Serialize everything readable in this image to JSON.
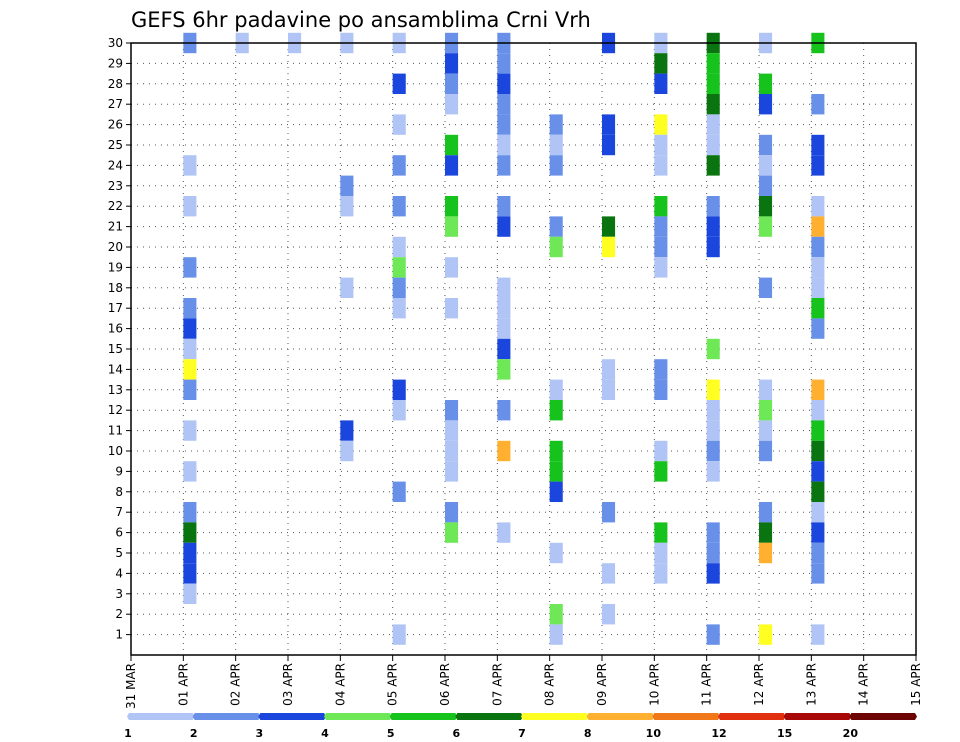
{
  "chart_data": {
    "type": "heatmap",
    "title": "GEFS 6hr padavine po ansamblima Crni Vrh",
    "xlabel": "",
    "ylabel": "",
    "x_ticks": [
      "31 MAR",
      "01 APR",
      "02 APR",
      "03 APR",
      "04 APR",
      "05 APR",
      "06 APR",
      "07 APR",
      "08 APR",
      "09 APR",
      "10 APR",
      "11 APR",
      "12 APR",
      "13 APR",
      "14 APR",
      "15 APR"
    ],
    "y_ticks": [
      1,
      2,
      3,
      4,
      5,
      6,
      7,
      8,
      9,
      10,
      11,
      12,
      13,
      14,
      15,
      16,
      17,
      18,
      19,
      20,
      21,
      22,
      23,
      24,
      25,
      26,
      27,
      28,
      29,
      30
    ],
    "x_range": [
      "31 MAR",
      "15 APR"
    ],
    "y_range": [
      0,
      30
    ],
    "x_step_hours": 6,
    "grid": true,
    "colorbar": {
      "labels": [
        "1",
        "2",
        "3",
        "4",
        "5",
        "6",
        "7",
        "8",
        "10",
        "12",
        "15",
        "20"
      ],
      "colors": [
        "#b0c4f5",
        "#6890e8",
        "#1b46dd",
        "#6ee856",
        "#16c21c",
        "#0a7410",
        "#ffff22",
        "#ffb030",
        "#f07818",
        "#e03010",
        "#a80808",
        "#6c0404"
      ]
    },
    "cells": [
      [
        1,
        30,
        "2"
      ],
      [
        1,
        24,
        "1"
      ],
      [
        1,
        22,
        "1"
      ],
      [
        1,
        19,
        "2"
      ],
      [
        1,
        17,
        "2"
      ],
      [
        1,
        16,
        "3"
      ],
      [
        1,
        15,
        "1"
      ],
      [
        1,
        14,
        "7"
      ],
      [
        1,
        13,
        "2"
      ],
      [
        1,
        11,
        "1"
      ],
      [
        1,
        9,
        "1"
      ],
      [
        1,
        7,
        "2"
      ],
      [
        1,
        6,
        "6"
      ],
      [
        1,
        5,
        "3"
      ],
      [
        1,
        4,
        "3"
      ],
      [
        1,
        3,
        "1"
      ],
      [
        2,
        30,
        "1"
      ],
      [
        3,
        30,
        "1"
      ],
      [
        4,
        30,
        "1"
      ],
      [
        4,
        23,
        "2"
      ],
      [
        4,
        22,
        "1"
      ],
      [
        4,
        18,
        "1"
      ],
      [
        4,
        11,
        "3"
      ],
      [
        4,
        10,
        "1"
      ],
      [
        5,
        30,
        "1"
      ],
      [
        5,
        28,
        "3"
      ],
      [
        5,
        26,
        "1"
      ],
      [
        5,
        24,
        "2"
      ],
      [
        5,
        22,
        "2"
      ],
      [
        5,
        20,
        "1"
      ],
      [
        5,
        19,
        "4"
      ],
      [
        5,
        18,
        "2"
      ],
      [
        5,
        17,
        "1"
      ],
      [
        5,
        13,
        "3"
      ],
      [
        5,
        12,
        "1"
      ],
      [
        5,
        8,
        "2"
      ],
      [
        5,
        1,
        "1"
      ],
      [
        6,
        30,
        "2"
      ],
      [
        6,
        29,
        "3"
      ],
      [
        6,
        28,
        "2"
      ],
      [
        6,
        27,
        "1"
      ],
      [
        6,
        25,
        "5"
      ],
      [
        6,
        24,
        "3"
      ],
      [
        6,
        22,
        "5"
      ],
      [
        6,
        21,
        "4"
      ],
      [
        6,
        19,
        "1"
      ],
      [
        6,
        17,
        "1"
      ],
      [
        6,
        12,
        "2"
      ],
      [
        6,
        11,
        "1"
      ],
      [
        6,
        10,
        "1"
      ],
      [
        6,
        9,
        "1"
      ],
      [
        6,
        7,
        "2"
      ],
      [
        6,
        6,
        "4"
      ],
      [
        7,
        30,
        "2"
      ],
      [
        7,
        29,
        "2"
      ],
      [
        7,
        28,
        "3"
      ],
      [
        7,
        27,
        "2"
      ],
      [
        7,
        26,
        "2"
      ],
      [
        7,
        25,
        "1"
      ],
      [
        7,
        24,
        "2"
      ],
      [
        7,
        22,
        "2"
      ],
      [
        7,
        21,
        "3"
      ],
      [
        7,
        18,
        "1"
      ],
      [
        7,
        17,
        "1"
      ],
      [
        7,
        16,
        "1"
      ],
      [
        7,
        15,
        "3"
      ],
      [
        7,
        14,
        "4"
      ],
      [
        7,
        12,
        "2"
      ],
      [
        7,
        10,
        "8"
      ],
      [
        7,
        6,
        "1"
      ],
      [
        8,
        26,
        "2"
      ],
      [
        8,
        25,
        "1"
      ],
      [
        8,
        24,
        "2"
      ],
      [
        8,
        21,
        "2"
      ],
      [
        8,
        20,
        "4"
      ],
      [
        8,
        13,
        "1"
      ],
      [
        8,
        12,
        "5"
      ],
      [
        8,
        10,
        "5"
      ],
      [
        8,
        9,
        "5"
      ],
      [
        8,
        8,
        "3"
      ],
      [
        8,
        5,
        "1"
      ],
      [
        8,
        2,
        "4"
      ],
      [
        8,
        1,
        "1"
      ],
      [
        9,
        30,
        "3"
      ],
      [
        9,
        26,
        "3"
      ],
      [
        9,
        25,
        "3"
      ],
      [
        9,
        21,
        "6"
      ],
      [
        9,
        20,
        "7"
      ],
      [
        9,
        14,
        "1"
      ],
      [
        9,
        13,
        "1"
      ],
      [
        9,
        7,
        "2"
      ],
      [
        9,
        4,
        "1"
      ],
      [
        9,
        2,
        "1"
      ],
      [
        10,
        30,
        "1"
      ],
      [
        10,
        29,
        "6"
      ],
      [
        10,
        28,
        "3"
      ],
      [
        10,
        26,
        "7"
      ],
      [
        10,
        25,
        "1"
      ],
      [
        10,
        24,
        "1"
      ],
      [
        10,
        22,
        "5"
      ],
      [
        10,
        21,
        "2"
      ],
      [
        10,
        20,
        "2"
      ],
      [
        10,
        19,
        "1"
      ],
      [
        10,
        14,
        "2"
      ],
      [
        10,
        13,
        "2"
      ],
      [
        10,
        10,
        "1"
      ],
      [
        10,
        9,
        "5"
      ],
      [
        10,
        6,
        "5"
      ],
      [
        10,
        5,
        "1"
      ],
      [
        10,
        4,
        "1"
      ],
      [
        11,
        30,
        "6"
      ],
      [
        11,
        29,
        "5"
      ],
      [
        11,
        28,
        "5"
      ],
      [
        11,
        27,
        "6"
      ],
      [
        11,
        26,
        "1"
      ],
      [
        11,
        25,
        "1"
      ],
      [
        11,
        24,
        "6"
      ],
      [
        11,
        22,
        "2"
      ],
      [
        11,
        21,
        "3"
      ],
      [
        11,
        20,
        "3"
      ],
      [
        11,
        15,
        "4"
      ],
      [
        11,
        13,
        "7"
      ],
      [
        11,
        12,
        "1"
      ],
      [
        11,
        11,
        "1"
      ],
      [
        11,
        10,
        "2"
      ],
      [
        11,
        9,
        "1"
      ],
      [
        11,
        6,
        "2"
      ],
      [
        11,
        5,
        "2"
      ],
      [
        11,
        4,
        "3"
      ],
      [
        11,
        1,
        "2"
      ],
      [
        12,
        30,
        "1"
      ],
      [
        12,
        28,
        "5"
      ],
      [
        12,
        27,
        "3"
      ],
      [
        12,
        25,
        "2"
      ],
      [
        12,
        24,
        "1"
      ],
      [
        12,
        23,
        "2"
      ],
      [
        12,
        22,
        "6"
      ],
      [
        12,
        21,
        "4"
      ],
      [
        12,
        18,
        "2"
      ],
      [
        12,
        13,
        "1"
      ],
      [
        12,
        12,
        "4"
      ],
      [
        12,
        11,
        "1"
      ],
      [
        12,
        10,
        "2"
      ],
      [
        12,
        7,
        "2"
      ],
      [
        12,
        6,
        "6"
      ],
      [
        12,
        5,
        "8"
      ],
      [
        12,
        1,
        "7"
      ],
      [
        13,
        30,
        "5"
      ],
      [
        13,
        27,
        "2"
      ],
      [
        13,
        25,
        "3"
      ],
      [
        13,
        24,
        "3"
      ],
      [
        13,
        22,
        "1"
      ],
      [
        13,
        21,
        "8"
      ],
      [
        13,
        20,
        "2"
      ],
      [
        13,
        19,
        "1"
      ],
      [
        13,
        18,
        "1"
      ],
      [
        13,
        17,
        "5"
      ],
      [
        13,
        16,
        "2"
      ],
      [
        13,
        13,
        "8"
      ],
      [
        13,
        12,
        "1"
      ],
      [
        13,
        11,
        "5"
      ],
      [
        13,
        10,
        "6"
      ],
      [
        13,
        9,
        "3"
      ],
      [
        13,
        8,
        "6"
      ],
      [
        13,
        7,
        "1"
      ],
      [
        13,
        6,
        "3"
      ],
      [
        13,
        5,
        "2"
      ],
      [
        13,
        4,
        "2"
      ],
      [
        13,
        1,
        "1"
      ]
    ]
  }
}
